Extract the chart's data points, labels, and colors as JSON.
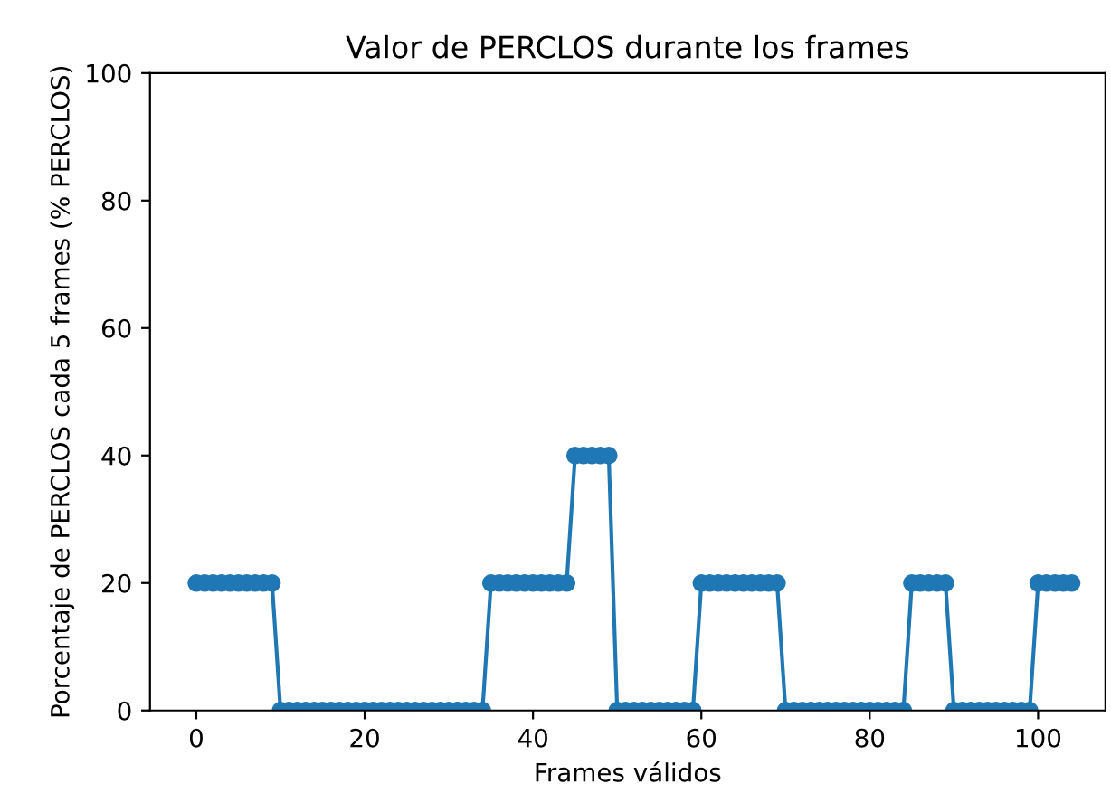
{
  "chart_data": {
    "type": "line",
    "title": "Valor de PERCLOS durante los frames",
    "xlabel": "Frames válidos",
    "ylabel": "Porcentaje de PERCLOS cada 5 frames (% PERCLOS)",
    "x": [
      0,
      1,
      2,
      3,
      4,
      5,
      6,
      7,
      8,
      9,
      10,
      11,
      12,
      13,
      14,
      15,
      16,
      17,
      18,
      19,
      20,
      21,
      22,
      23,
      24,
      25,
      26,
      27,
      28,
      29,
      30,
      31,
      32,
      33,
      34,
      35,
      36,
      37,
      38,
      39,
      40,
      41,
      42,
      43,
      44,
      45,
      46,
      47,
      48,
      49,
      50,
      51,
      52,
      53,
      54,
      55,
      56,
      57,
      58,
      59,
      60,
      61,
      62,
      63,
      64,
      65,
      66,
      67,
      68,
      69,
      70,
      71,
      72,
      73,
      74,
      75,
      76,
      77,
      78,
      79,
      80,
      81,
      82,
      83,
      84,
      85,
      86,
      87,
      88,
      89,
      90,
      91,
      92,
      93,
      94,
      95,
      96,
      97,
      98,
      99,
      100,
      101,
      102,
      103,
      104
    ],
    "series": [
      {
        "color": "#1f77b4",
        "values": [
          20,
          20,
          20,
          20,
          20,
          20,
          20,
          20,
          20,
          20,
          0,
          0,
          0,
          0,
          0,
          0,
          0,
          0,
          0,
          0,
          0,
          0,
          0,
          0,
          0,
          0,
          0,
          0,
          0,
          0,
          0,
          0,
          0,
          0,
          0,
          20,
          20,
          20,
          20,
          20,
          20,
          20,
          20,
          20,
          20,
          40,
          40,
          40,
          40,
          40,
          0,
          0,
          0,
          0,
          0,
          0,
          0,
          0,
          0,
          0,
          20,
          20,
          20,
          20,
          20,
          20,
          20,
          20,
          20,
          20,
          0,
          0,
          0,
          0,
          0,
          0,
          0,
          0,
          0,
          0,
          0,
          0,
          0,
          0,
          0,
          20,
          20,
          20,
          20,
          20,
          0,
          0,
          0,
          0,
          0,
          0,
          0,
          0,
          0,
          0,
          20,
          20,
          20,
          20,
          20
        ]
      }
    ],
    "xlim": [
      -5.5,
      108
    ],
    "ylim": [
      0,
      100
    ],
    "xticks": [
      0,
      20,
      40,
      60,
      80,
      100
    ],
    "yticks": [
      0,
      20,
      40,
      60,
      80,
      100
    ],
    "marker": "circle",
    "line_style": "solid",
    "grid": false,
    "legend": false
  }
}
